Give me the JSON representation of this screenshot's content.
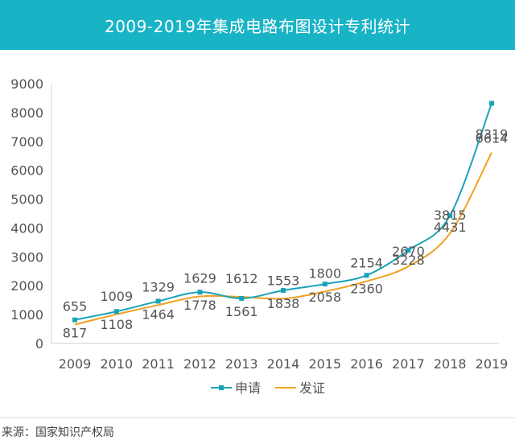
{
  "header": {
    "title": "2009-2019年集成电路布图设计专利统计"
  },
  "footer": {
    "source": "来源：国家知识产权局"
  },
  "colors": {
    "header_bg": "#19b3c6",
    "series_apply": "#1aa3b8",
    "series_grant": "#f0a020"
  },
  "chart_data": {
    "type": "line",
    "title": "2009-2019年集成电路布图设计专利统计",
    "xlabel": "",
    "ylabel": "",
    "ylim": [
      0,
      9000
    ],
    "yticks": [
      0,
      1000,
      2000,
      3000,
      4000,
      5000,
      6000,
      7000,
      8000,
      9000
    ],
    "categories": [
      "2009",
      "2010",
      "2011",
      "2012",
      "2013",
      "2014",
      "2015",
      "2016",
      "2017",
      "2018",
      "2019"
    ],
    "series": [
      {
        "name": "申请",
        "color": "#1aa3b8",
        "marker": "square",
        "values": [
          817,
          1108,
          1464,
          1778,
          1561,
          1838,
          2058,
          2360,
          3228,
          4431,
          8319
        ],
        "labels": [
          "817",
          "1108",
          "1464",
          "1778",
          "1561",
          "1838",
          "2058",
          "2360",
          "3228",
          "4431",
          "8319"
        ]
      },
      {
        "name": "发证",
        "color": "#f0a020",
        "marker": "none",
        "values": [
          655,
          1009,
          1329,
          1629,
          1612,
          1553,
          1800,
          2154,
          2670,
          3815,
          6614
        ],
        "labels": [
          "655",
          "1009",
          "1329",
          "1629",
          "1612",
          "1553",
          "1800",
          "2154",
          "2670",
          "3815",
          "6614"
        ]
      }
    ],
    "grid": false,
    "legend": "bottom"
  }
}
